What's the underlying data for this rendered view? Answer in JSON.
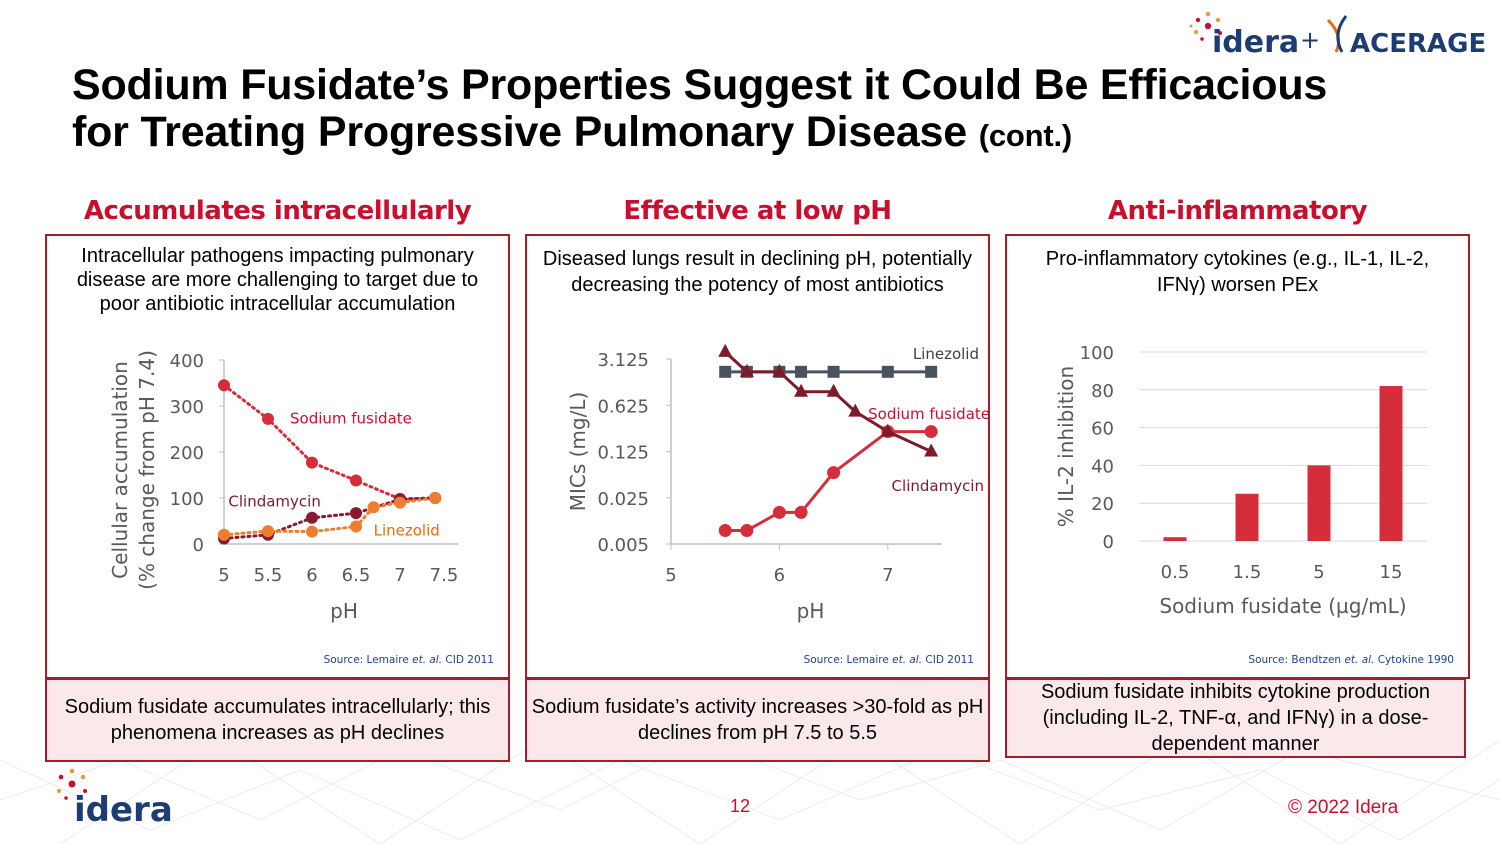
{
  "header": {
    "logo_idera": "idera",
    "plus": "+",
    "logo_aceragen": "ACERAGEN",
    "title_line1": "Sodium Fusidate’s Properties Suggest it Could Be Efficacious",
    "title_line2": "for Treating Progressive Pulmonary Disease",
    "title_cont": "(cont.)"
  },
  "panels": [
    {
      "heading": "Accumulates intracellularly",
      "description": "Intracellular pathogens impacting pulmonary disease are more challenging to target due to poor antibiotic intracellular accumulation",
      "source_prefix": "Source: Lemaire ",
      "source_etal": "et. al.",
      "source_suffix": " CID 2011",
      "footer": "Sodium fusidate accumulates intracellularly; this phenomena increases as pH declines"
    },
    {
      "heading": "Effective at low pH",
      "description": "Diseased lungs result in declining pH, potentially decreasing the potency of most antibiotics",
      "source_prefix": "Source: Lemaire ",
      "source_etal": "et. al.",
      "source_suffix": " CID 2011",
      "footer": "Sodium fusidate’s activity increases >30-fold as pH declines from pH 7.5 to 5.5"
    },
    {
      "heading": "Anti-inflammatory",
      "description": "Pro-inflammatory cytokines (e.g., IL-1, IL-2, IFNγ) worsen PEx",
      "source_prefix": "Source: Bendtzen ",
      "source_etal": "et. al.",
      "source_suffix": " Cytokine 1990",
      "footer": "Sodium fusidate inhibits cytokine production (including IL-2, TNF-α, and IFNγ) in a dose-dependent manner"
    }
  ],
  "footer": {
    "page_number": "12",
    "copyright": "© 2022 Idera",
    "logo": "idera"
  },
  "colors": {
    "accent": "#c8102e",
    "border": "#a51d2d",
    "panel_fill": "#fbe8ea",
    "dark_red": "#7b1c2a",
    "orange": "#ed7d31",
    "slate": "#4a5260"
  },
  "chart_data": [
    {
      "type": "line",
      "xlabel": "pH",
      "ylabel_line1": "Cellular accumulation",
      "ylabel_line2": "(% change from pH 7.4)",
      "xlim": [
        5,
        7.5
      ],
      "ylim": [
        0,
        400
      ],
      "x_ticks": [
        "5",
        "5.5",
        "6",
        "6.5",
        "7",
        "7.5"
      ],
      "y_ticks": [
        "0",
        "100",
        "200",
        "300",
        "400"
      ],
      "series": [
        {
          "name": "Sodium fusidate",
          "color": "#d62d3a",
          "label_color": "#c8102e",
          "points": [
            [
              5.0,
              345
            ],
            [
              5.5,
              272
            ],
            [
              6.0,
              177
            ],
            [
              6.5,
              138
            ],
            [
              7.0,
              98
            ],
            [
              7.4,
              100
            ]
          ]
        },
        {
          "name": "Clindamycin",
          "color": "#8b1a2e",
          "label_color": "#7b1c2a",
          "points": [
            [
              5.0,
              12
            ],
            [
              5.5,
              20
            ],
            [
              6.0,
              57
            ],
            [
              6.5,
              67
            ],
            [
              7.0,
              97
            ],
            [
              7.4,
              100
            ]
          ]
        },
        {
          "name": "Linezolid",
          "color": "#ed7d31",
          "label_color": "#e46c0a",
          "points": [
            [
              5.0,
              20
            ],
            [
              5.5,
              28
            ],
            [
              6.0,
              27
            ],
            [
              6.5,
              38
            ],
            [
              6.7,
              80
            ],
            [
              7.0,
              90
            ],
            [
              7.4,
              100
            ]
          ]
        }
      ]
    },
    {
      "type": "line",
      "xlabel": "pH",
      "ylabel": "MICs (mg/L)",
      "y_scale": "log",
      "xlim": [
        5,
        7.5
      ],
      "ylim": [
        0.005,
        3.125
      ],
      "x_ticks": [
        "5",
        "6",
        "7"
      ],
      "y_ticks": [
        "0.005",
        "0.025",
        "0.125",
        "0.625",
        "3.125"
      ],
      "series": [
        {
          "name": "Linezolid",
          "color": "#4a5260",
          "label_color": "#404040",
          "marker": "square",
          "points": [
            [
              5.5,
              2
            ],
            [
              5.7,
              2
            ],
            [
              6.0,
              2
            ],
            [
              6.2,
              2
            ],
            [
              6.5,
              2
            ],
            [
              7.0,
              2
            ],
            [
              7.4,
              2
            ]
          ]
        },
        {
          "name": "Sodium fusidate",
          "color": "#d62d3a",
          "label_color": "#c8102e",
          "marker": "circle",
          "points": [
            [
              5.5,
              0.008
            ],
            [
              5.7,
              0.008
            ],
            [
              6.0,
              0.015
            ],
            [
              6.2,
              0.015
            ],
            [
              6.5,
              0.06
            ],
            [
              7.0,
              0.25
            ],
            [
              7.4,
              0.25
            ]
          ]
        },
        {
          "name": "Clindamycin",
          "color": "#7b1c2a",
          "label_color": "#7b1c2a",
          "marker": "triangle",
          "points": [
            [
              5.5,
              4
            ],
            [
              5.7,
              2
            ],
            [
              6.0,
              2
            ],
            [
              6.2,
              1
            ],
            [
              6.5,
              1
            ],
            [
              6.7,
              0.5
            ],
            [
              7.0,
              0.25
            ],
            [
              7.4,
              0.125
            ]
          ]
        }
      ]
    },
    {
      "type": "bar",
      "xlabel": "Sodium fusidate (µg/mL)",
      "ylabel": "% IL-2 inhibition",
      "categories": [
        "0.5",
        "1.5",
        "5",
        "15"
      ],
      "values": [
        2,
        25,
        40,
        82
      ],
      "ylim": [
        0,
        100
      ],
      "y_ticks": [
        "0",
        "20",
        "40",
        "60",
        "80",
        "100"
      ],
      "bar_color": "#d62d3a"
    }
  ]
}
